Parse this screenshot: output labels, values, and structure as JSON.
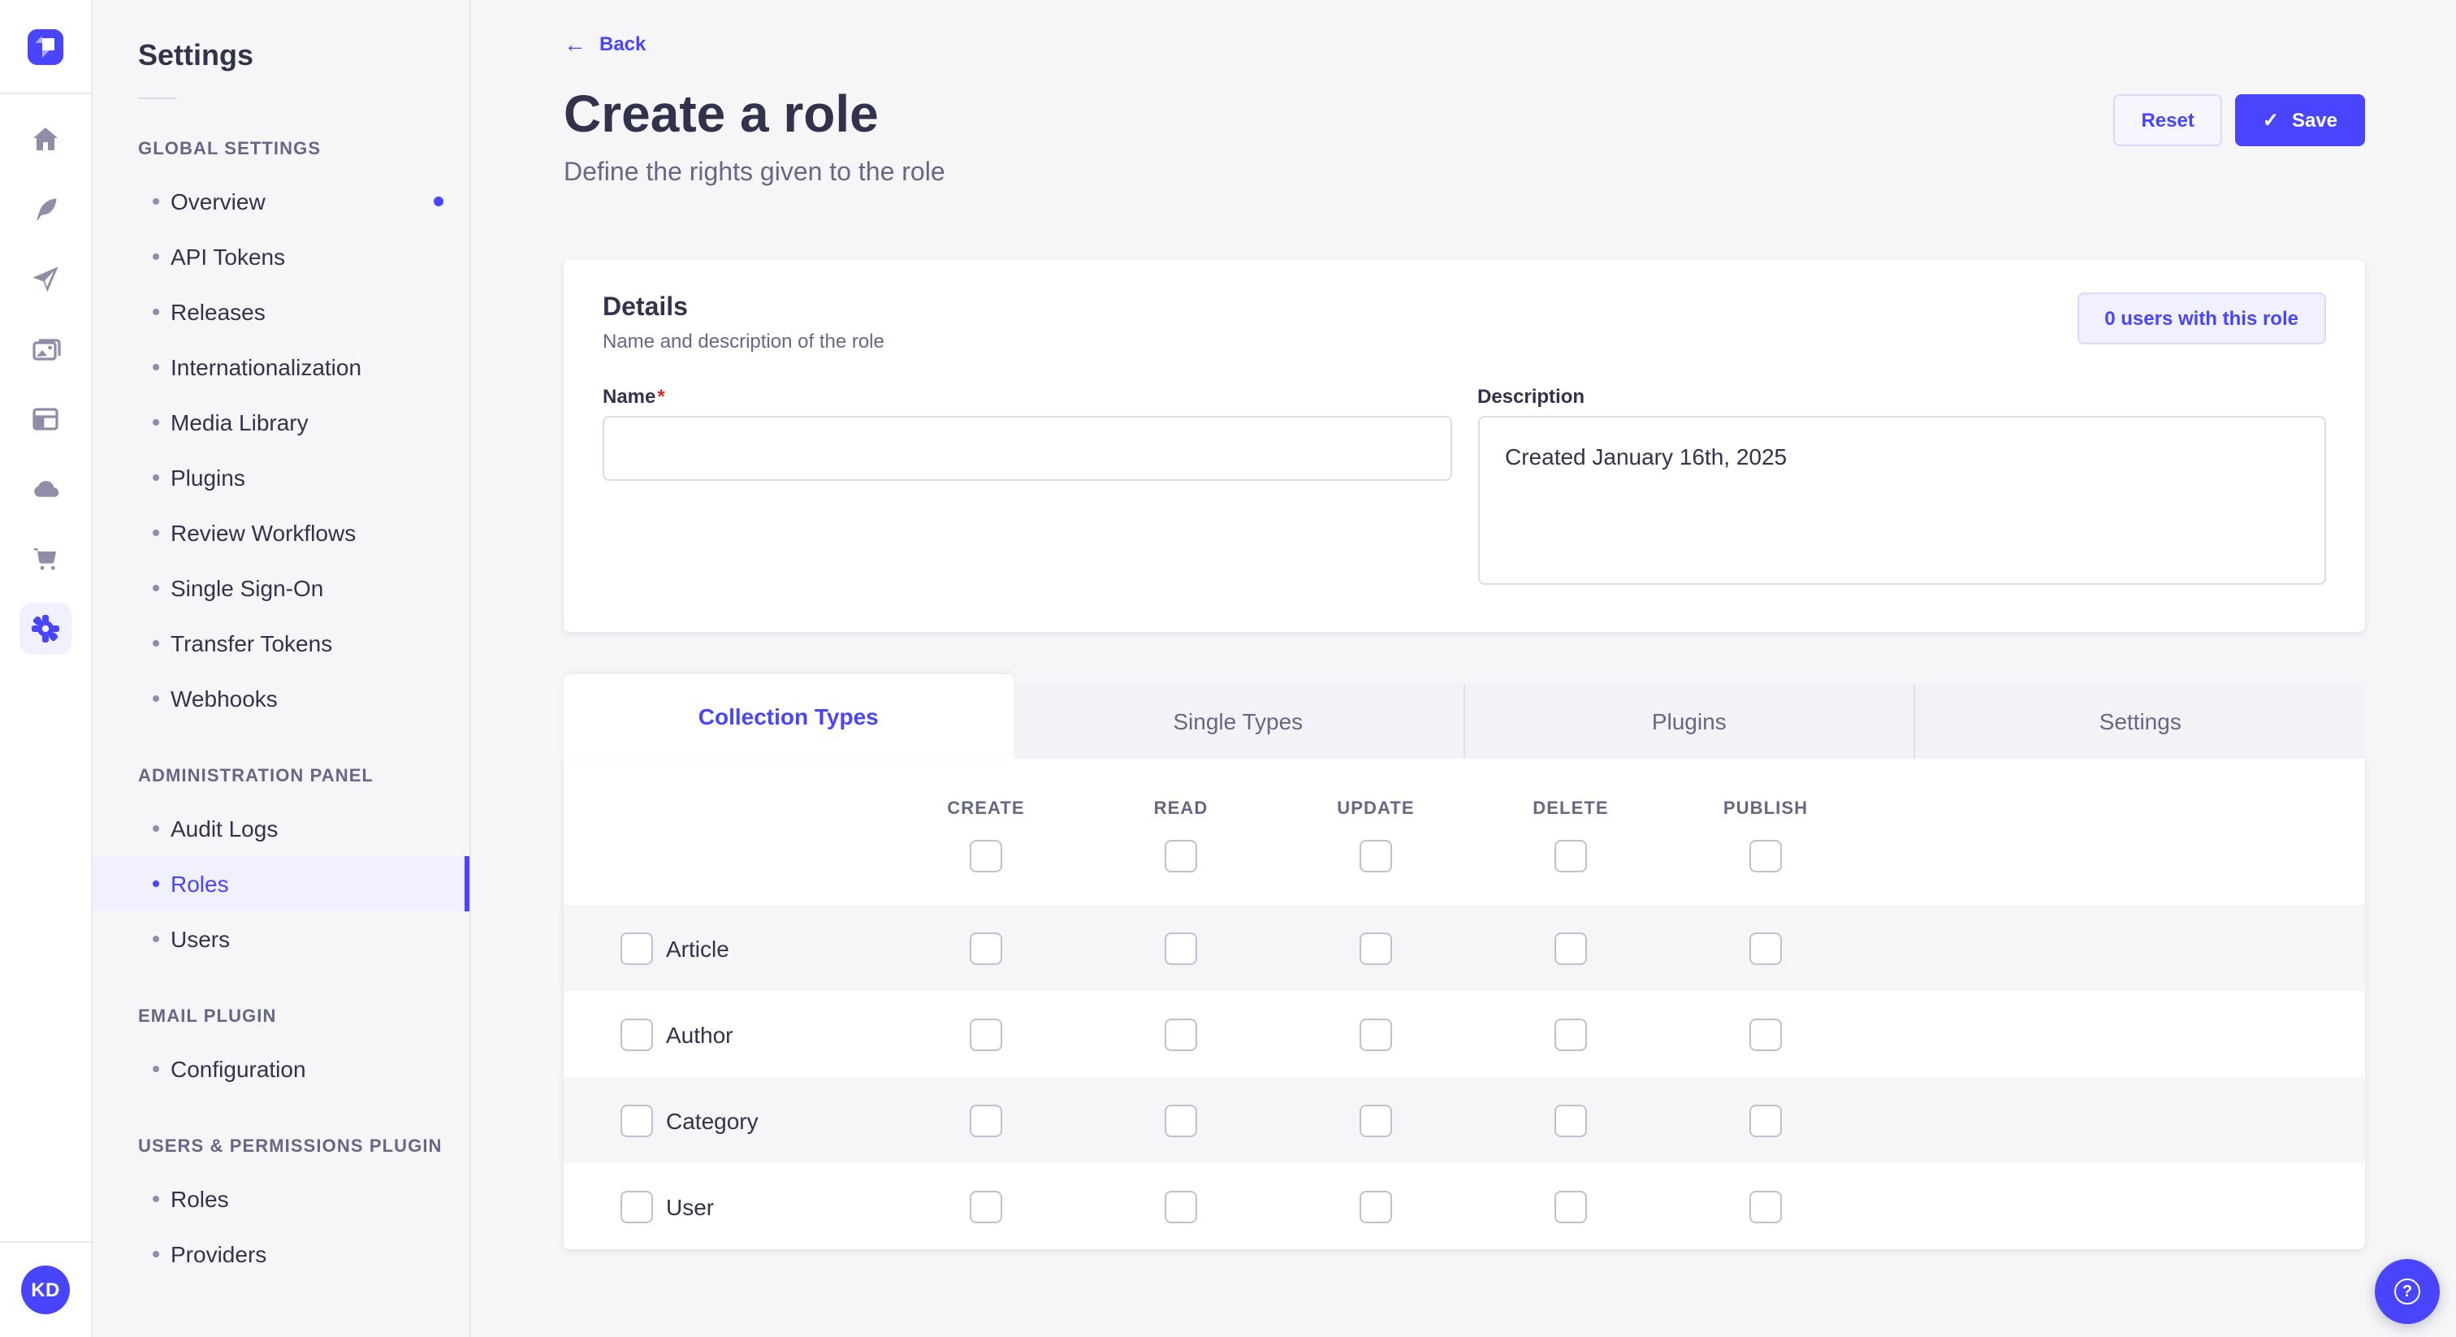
{
  "colors": {
    "accent": "#4945ff",
    "accent_light": "#f0f0ff",
    "accent_border": "#d9d8ff",
    "text": "#32324d",
    "muted": "#666687",
    "icon_gray": "#8e8ea9",
    "required": "#d02b20",
    "stripe": "#f6f6f9"
  },
  "icon_rail": {
    "logo_name": "strapi-logo",
    "items": [
      {
        "name": "home",
        "active": false
      },
      {
        "name": "content-feather",
        "active": false
      },
      {
        "name": "send-plane",
        "active": false
      },
      {
        "name": "media-images",
        "active": false
      },
      {
        "name": "layout-panel",
        "active": false
      },
      {
        "name": "cloud",
        "active": false
      },
      {
        "name": "marketplace-cart",
        "active": false
      },
      {
        "name": "settings-gear",
        "active": true
      }
    ],
    "avatar_initials": "KD"
  },
  "sidebar": {
    "title": "Settings",
    "sections": [
      {
        "label": "GLOBAL SETTINGS",
        "items": [
          {
            "label": "Overview",
            "notification": true
          },
          {
            "label": "API Tokens"
          },
          {
            "label": "Releases"
          },
          {
            "label": "Internationalization"
          },
          {
            "label": "Media Library"
          },
          {
            "label": "Plugins"
          },
          {
            "label": "Review Workflows"
          },
          {
            "label": "Single Sign-On"
          },
          {
            "label": "Transfer Tokens"
          },
          {
            "label": "Webhooks"
          }
        ]
      },
      {
        "label": "ADMINISTRATION PANEL",
        "items": [
          {
            "label": "Audit Logs"
          },
          {
            "label": "Roles",
            "active": true
          },
          {
            "label": "Users"
          }
        ]
      },
      {
        "label": "EMAIL PLUGIN",
        "items": [
          {
            "label": "Configuration"
          }
        ]
      },
      {
        "label": "USERS & PERMISSIONS PLUGIN",
        "items": [
          {
            "label": "Roles"
          },
          {
            "label": "Providers"
          }
        ]
      }
    ]
  },
  "header": {
    "back_label": "Back",
    "title": "Create a role",
    "subtitle": "Define the rights given to the role",
    "reset_label": "Reset",
    "save_label": "Save"
  },
  "details": {
    "heading": "Details",
    "subheading": "Name and description of the role",
    "users_button_label": "0 users with this role",
    "name_label": "Name",
    "required_mark": "*",
    "name_value": "",
    "description_label": "Description",
    "description_value": "Created January 16th, 2025"
  },
  "permissions": {
    "tabs": [
      {
        "label": "Collection Types",
        "active": true
      },
      {
        "label": "Single Types",
        "active": false
      },
      {
        "label": "Plugins",
        "active": false
      },
      {
        "label": "Settings",
        "active": false
      }
    ],
    "columns": [
      "CREATE",
      "READ",
      "UPDATE",
      "DELETE",
      "PUBLISH"
    ],
    "rows": [
      {
        "label": "Article"
      },
      {
        "label": "Author"
      },
      {
        "label": "Category"
      },
      {
        "label": "User"
      }
    ]
  },
  "floating": {
    "help_icon": "question-mark"
  }
}
